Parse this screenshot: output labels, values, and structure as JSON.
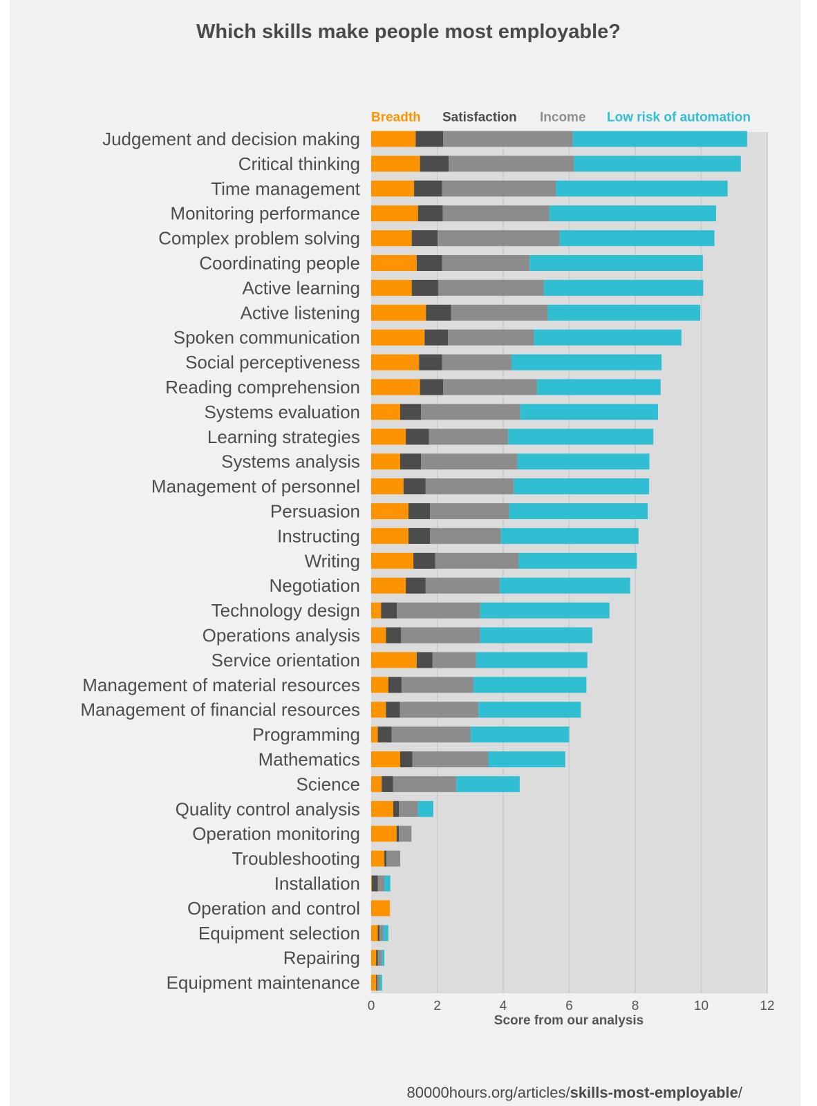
{
  "chart_data": {
    "type": "bar",
    "orientation": "horizontal",
    "stacked": true,
    "title": "Which skills make people most employable?",
    "xlabel": "Score from our analysis",
    "ylabel": "",
    "xlim": [
      0,
      12
    ],
    "xticks": [
      0,
      2,
      4,
      6,
      8,
      10,
      12
    ],
    "grid": true,
    "legend_position": "top",
    "categories": [
      "Judgement and decision making",
      "Critical thinking",
      "Time management",
      "Monitoring performance",
      "Complex problem solving",
      "Coordinating people",
      "Active learning",
      "Active listening",
      "Spoken communication",
      "Social perceptiveness",
      "Reading comprehension",
      "Systems evaluation",
      "Learning strategies",
      "Systems analysis",
      "Management of personnel",
      "Persuasion",
      "Instructing",
      "Writing",
      "Negotiation",
      "Technology design",
      "Operations analysis",
      "Service orientation",
      "Management of material resources",
      "Management of financial resources",
      "Programming",
      "Mathematics",
      "Science",
      "Quality control analysis",
      "Operation monitoring",
      "Troubleshooting",
      "Installation",
      "Operation and control",
      "Equipment selection",
      "Repairing",
      "Equipment maintenance"
    ],
    "series": [
      {
        "name": "Breadth",
        "color": "#fe9300",
        "values": [
          1.35,
          1.48,
          1.3,
          1.42,
          1.23,
          1.38,
          1.23,
          1.66,
          1.62,
          1.45,
          1.48,
          0.88,
          1.05,
          0.88,
          0.98,
          1.13,
          1.13,
          1.28,
          1.05,
          0.3,
          0.45,
          1.38,
          0.52,
          0.45,
          0.2,
          0.88,
          0.32,
          0.67,
          0.77,
          0.4,
          0.02,
          0.57,
          0.2,
          0.15,
          0.15
        ]
      },
      {
        "name": "Satisfaction",
        "color": "#4c4c4c",
        "values": [
          0.83,
          0.87,
          0.85,
          0.75,
          0.78,
          0.77,
          0.8,
          0.76,
          0.71,
          0.7,
          0.7,
          0.63,
          0.7,
          0.63,
          0.67,
          0.65,
          0.65,
          0.66,
          0.6,
          0.48,
          0.45,
          0.48,
          0.4,
          0.42,
          0.42,
          0.37,
          0.34,
          0.17,
          0.07,
          0.06,
          0.18,
          0,
          0.05,
          0.05,
          0.03
        ]
      },
      {
        "name": "Income",
        "color": "#8c8c8c",
        "values": [
          3.93,
          3.8,
          3.45,
          3.23,
          3.7,
          2.65,
          3.2,
          2.93,
          2.6,
          2.1,
          2.85,
          3.0,
          2.4,
          2.92,
          2.67,
          2.4,
          2.15,
          2.53,
          2.25,
          2.52,
          2.4,
          1.32,
          2.18,
          2.38,
          2.4,
          2.3,
          1.92,
          0.58,
          0.38,
          0.42,
          0.2,
          0,
          0.12,
          0.13,
          0.08
        ]
      },
      {
        "name": "Low risk of automation",
        "color": "#30bed3",
        "values": [
          5.28,
          5.05,
          5.2,
          5.05,
          4.69,
          5.25,
          4.83,
          4.62,
          4.47,
          4.55,
          3.74,
          4.18,
          4.4,
          4.0,
          4.1,
          4.2,
          4.17,
          3.58,
          3.95,
          3.92,
          3.4,
          3.37,
          3.42,
          3.1,
          2.98,
          2.33,
          1.92,
          0.46,
          0,
          0,
          0.18,
          0,
          0.15,
          0.07,
          0.07
        ]
      }
    ]
  },
  "source": {
    "prefix": "80000hours.org/articles/",
    "bold": "skills-most-employable",
    "suffix": "/"
  }
}
